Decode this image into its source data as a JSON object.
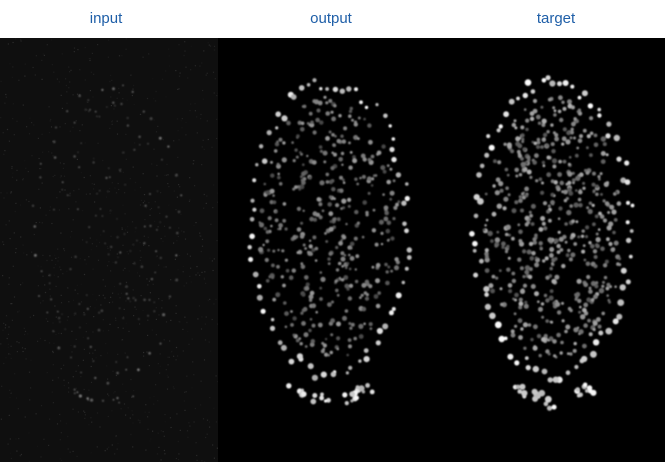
{
  "labels": {
    "input": "input",
    "output": "output",
    "target": "target"
  },
  "colors": {
    "label_text": "#1f5fa8",
    "header_background": "#ffffff",
    "input_panel_background": "#0f0f0f",
    "output_panel_background": "#000000",
    "target_panel_background": "#000000"
  }
}
